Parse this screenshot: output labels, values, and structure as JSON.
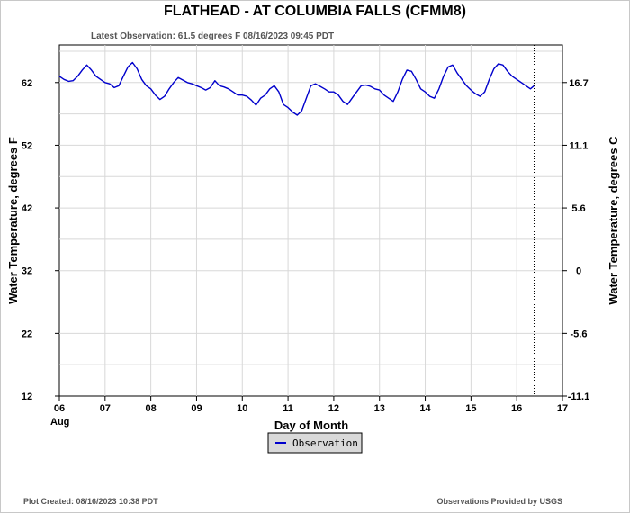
{
  "chart_data": {
    "type": "line",
    "title": "FLATHEAD - AT COLUMBIA FALLS  (CFMM8)",
    "subtitle": "Latest Observation: 61.5 degrees F 08/16/2023 09:45 PDT",
    "xlabel": "Day of Month",
    "x_month_label": "Aug",
    "ylabel_left": "Water Temperature, degrees F",
    "ylabel_right": "Water Temperature, degrees C",
    "xlim": [
      6,
      17
    ],
    "ylim": [
      12,
      68
    ],
    "x_ticks": [
      6,
      7,
      8,
      9,
      10,
      11,
      12,
      13,
      14,
      15,
      16,
      17
    ],
    "x_tick_labels": [
      "06",
      "07",
      "08",
      "09",
      "10",
      "11",
      "12",
      "13",
      "14",
      "15",
      "16",
      "17"
    ],
    "y_ticks_left": [
      12,
      22,
      32,
      42,
      52,
      62
    ],
    "y_tick_labels_left": [
      "12",
      "22",
      "32",
      "42",
      "52",
      "62"
    ],
    "y_tick_labels_right": [
      "-11.1",
      "-5.6",
      "0",
      "5.6",
      "11.1",
      "16.7"
    ],
    "grid": true,
    "latest_observation_x": 16.38,
    "series": [
      {
        "name": "Observation",
        "color": "#0000cc",
        "x": [
          6.0,
          6.1,
          6.2,
          6.3,
          6.4,
          6.5,
          6.6,
          6.7,
          6.8,
          6.9,
          7.0,
          7.1,
          7.2,
          7.3,
          7.4,
          7.5,
          7.6,
          7.7,
          7.8,
          7.9,
          8.0,
          8.1,
          8.2,
          8.3,
          8.4,
          8.5,
          8.6,
          8.7,
          8.8,
          8.9,
          9.0,
          9.1,
          9.2,
          9.3,
          9.4,
          9.5,
          9.6,
          9.7,
          9.8,
          9.9,
          10.0,
          10.1,
          10.2,
          10.3,
          10.4,
          10.5,
          10.6,
          10.7,
          10.8,
          10.9,
          11.0,
          11.1,
          11.2,
          11.3,
          11.4,
          11.5,
          11.6,
          11.7,
          11.8,
          11.9,
          12.0,
          12.1,
          12.2,
          12.3,
          12.4,
          12.5,
          12.6,
          12.7,
          12.8,
          12.9,
          13.0,
          13.1,
          13.2,
          13.3,
          13.4,
          13.5,
          13.6,
          13.7,
          13.8,
          13.9,
          14.0,
          14.1,
          14.2,
          14.3,
          14.4,
          14.5,
          14.6,
          14.7,
          14.8,
          14.9,
          15.0,
          15.1,
          15.2,
          15.3,
          15.4,
          15.5,
          15.6,
          15.7,
          15.8,
          15.9,
          16.0,
          16.1,
          16.2,
          16.3,
          16.38
        ],
        "y": [
          63.0,
          62.5,
          62.2,
          62.3,
          63.0,
          64.0,
          64.8,
          64.0,
          63.0,
          62.5,
          62.0,
          61.8,
          61.2,
          61.5,
          63.0,
          64.5,
          65.2,
          64.2,
          62.5,
          61.5,
          61.0,
          60.0,
          59.3,
          59.8,
          61.0,
          62.0,
          62.8,
          62.4,
          62.0,
          61.8,
          61.5,
          61.2,
          60.8,
          61.2,
          62.3,
          61.5,
          61.3,
          61.0,
          60.5,
          60.0,
          60.0,
          59.8,
          59.2,
          58.4,
          59.5,
          60.0,
          61.0,
          61.5,
          60.5,
          58.5,
          58.0,
          57.3,
          56.8,
          57.5,
          59.5,
          61.5,
          61.8,
          61.4,
          61.0,
          60.5,
          60.5,
          60.0,
          59.0,
          58.5,
          59.5,
          60.5,
          61.5,
          61.6,
          61.4,
          61.0,
          60.8,
          60.0,
          59.5,
          59.0,
          60.5,
          62.5,
          64.0,
          63.8,
          62.5,
          61.0,
          60.5,
          59.8,
          59.5,
          61.0,
          63.0,
          64.5,
          64.8,
          63.5,
          62.5,
          61.5,
          60.8,
          60.2,
          59.8,
          60.5,
          62.5,
          64.2,
          65.0,
          64.8,
          63.8,
          63.0,
          62.5,
          62.0,
          61.5,
          61.0,
          61.5
        ]
      }
    ]
  },
  "legend": {
    "label": "Observation"
  },
  "footer": {
    "left": "Plot Created: 08/16/2023 10:38 PDT",
    "right": "Observations Provided by USGS"
  }
}
